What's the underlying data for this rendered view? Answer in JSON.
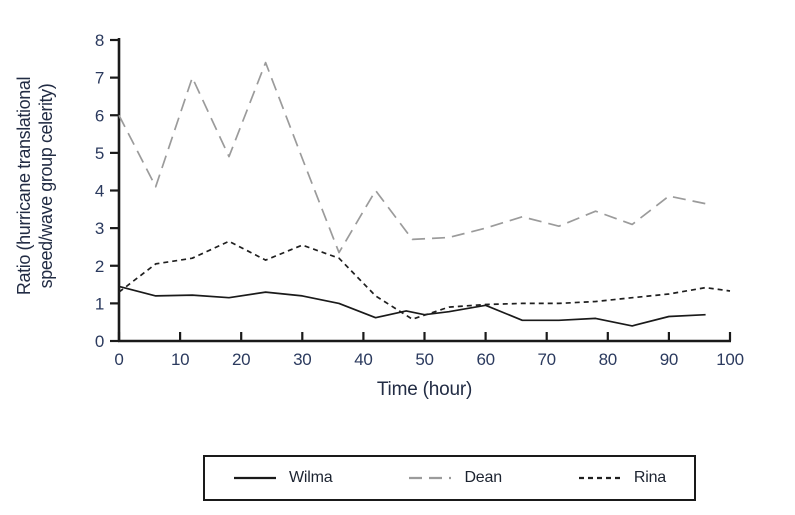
{
  "chart_data": {
    "type": "line",
    "title": "",
    "xlabel": "Time (hour)",
    "ylabel_line1": "Ratio (hurricane translational",
    "ylabel_line2": "speed/wave group celerity)",
    "xlim": [
      0,
      100
    ],
    "ylim": [
      0,
      8
    ],
    "xticks": [
      0,
      10,
      20,
      30,
      40,
      50,
      60,
      70,
      80,
      90,
      100
    ],
    "yticks": [
      0,
      1,
      2,
      3,
      4,
      5,
      6,
      7,
      8
    ],
    "grid": false,
    "legend_position": "bottom-outside",
    "axis_color": "#1a1a1a",
    "tick_label_color": "#2b3a5e",
    "axis_title_color": "#222c44",
    "series": [
      {
        "name": "Wilma",
        "color": "#1a1a1a",
        "dash": "solid",
        "points": [
          [
            0,
            1.45
          ],
          [
            6,
            1.2
          ],
          [
            12,
            1.22
          ],
          [
            18,
            1.15
          ],
          [
            24,
            1.3
          ],
          [
            30,
            1.2
          ],
          [
            36,
            1.0
          ],
          [
            42,
            0.62
          ],
          [
            47,
            0.8
          ],
          [
            50,
            0.7
          ],
          [
            54,
            0.78
          ],
          [
            60,
            0.95
          ],
          [
            66,
            0.55
          ],
          [
            72,
            0.55
          ],
          [
            78,
            0.6
          ],
          [
            84,
            0.4
          ],
          [
            90,
            0.65
          ],
          [
            96,
            0.7
          ]
        ]
      },
      {
        "name": "Dean",
        "color": "#9b9b9b",
        "dash": "long-dash",
        "points": [
          [
            0,
            6.0
          ],
          [
            6,
            4.1
          ],
          [
            12,
            7.0
          ],
          [
            18,
            4.9
          ],
          [
            24,
            7.4
          ],
          [
            30,
            4.85
          ],
          [
            36,
            2.35
          ],
          [
            42,
            4.0
          ],
          [
            48,
            2.7
          ],
          [
            54,
            2.75
          ],
          [
            60,
            3.0
          ],
          [
            66,
            3.3
          ],
          [
            72,
            3.05
          ],
          [
            78,
            3.45
          ],
          [
            84,
            3.1
          ],
          [
            90,
            3.85
          ],
          [
            96,
            3.65
          ]
        ]
      },
      {
        "name": "Rina",
        "color": "#1f1f1f",
        "dash": "short-dash",
        "points": [
          [
            0,
            1.3
          ],
          [
            6,
            2.05
          ],
          [
            12,
            2.2
          ],
          [
            18,
            2.65
          ],
          [
            24,
            2.15
          ],
          [
            30,
            2.55
          ],
          [
            36,
            2.2
          ],
          [
            42,
            1.2
          ],
          [
            48,
            0.58
          ],
          [
            54,
            0.9
          ],
          [
            60,
            0.97
          ],
          [
            66,
            1.0
          ],
          [
            72,
            1.0
          ],
          [
            78,
            1.05
          ],
          [
            84,
            1.15
          ],
          [
            90,
            1.25
          ],
          [
            96,
            1.42
          ],
          [
            100,
            1.33
          ]
        ]
      }
    ]
  }
}
